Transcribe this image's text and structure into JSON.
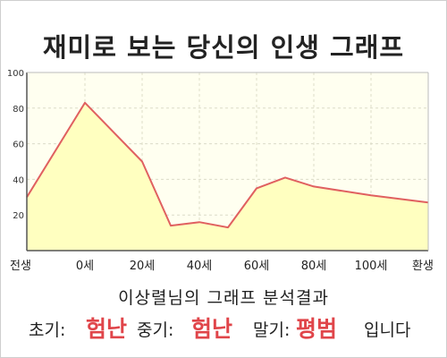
{
  "title": "재미로 보는 당신의 인생 그래프",
  "colors": {
    "line": "#e06060",
    "fill": "#ffffc0",
    "plot_bg": "#fffff0",
    "grid": "#dcdcc8",
    "highlight": "#e0454a"
  },
  "result": {
    "name_line": "이상렬님의 그래프 분석결과",
    "early_label": "초기:",
    "early_value": "험난",
    "middle_label": "중기:",
    "middle_value": "험난",
    "late_label": "말기:",
    "late_value": "평범",
    "ending": "입니다"
  },
  "chart_data": {
    "type": "area",
    "title": "",
    "xlabel": "",
    "ylabel": "",
    "x_ticks": [
      "전생",
      "0세",
      "20세",
      "40세",
      "60세",
      "80세",
      "100세",
      "환생"
    ],
    "y_ticks": [
      20,
      40,
      60,
      80,
      100
    ],
    "ylim": [
      0,
      100
    ],
    "grid": true,
    "series": [
      {
        "values": [
          {
            "x": "전생",
            "y": 30
          },
          {
            "x": "0세",
            "y": 83
          },
          {
            "x": "20세",
            "y": 50
          },
          {
            "x": "30세",
            "y": 14
          },
          {
            "x": "40세",
            "y": 16
          },
          {
            "x": "50세",
            "y": 13
          },
          {
            "x": "60세",
            "y": 35
          },
          {
            "x": "70세",
            "y": 41
          },
          {
            "x": "80세",
            "y": 36
          },
          {
            "x": "100세",
            "y": 31
          },
          {
            "x": "환생",
            "y": 27
          }
        ]
      }
    ]
  }
}
